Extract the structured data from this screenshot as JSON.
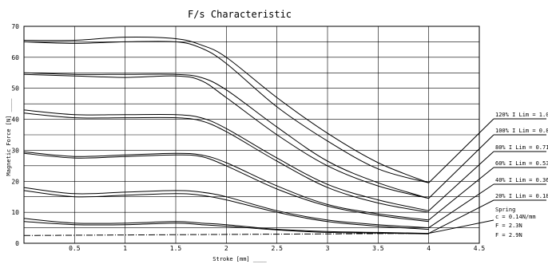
{
  "chart_data": {
    "type": "line",
    "title": "F/s Characteristic",
    "xlabel": "Stroke [mm] ____",
    "ylabel": "Magnetic Force [N] ____",
    "xlim": [
      0,
      4.5
    ],
    "ylim": [
      0,
      70
    ],
    "xticks": [
      "0.5",
      "1",
      "1.5",
      "2",
      "2.5",
      "3",
      "3.5",
      "4",
      "4.5"
    ],
    "yticks": [
      "0",
      "10",
      "20",
      "30",
      "40",
      "50",
      "60",
      "70"
    ],
    "grid": true,
    "series": [
      {
        "name": "120% I Lim = 1.07A",
        "upper": [
          [
            0,
            65.5
          ],
          [
            0.5,
            65.5
          ],
          [
            1,
            66.5
          ],
          [
            1.5,
            66
          ],
          [
            1.75,
            64
          ],
          [
            2,
            60
          ],
          [
            2.5,
            47
          ],
          [
            3,
            35.5
          ],
          [
            3.5,
            26
          ],
          [
            4,
            19.5
          ]
        ],
        "lower": [
          [
            0,
            65
          ],
          [
            0.5,
            64.5
          ],
          [
            1,
            65
          ],
          [
            1.5,
            65
          ],
          [
            1.75,
            63
          ],
          [
            2,
            58
          ],
          [
            2.5,
            44
          ],
          [
            3,
            33
          ],
          [
            3.5,
            24
          ],
          [
            4,
            19.5
          ]
        ]
      },
      {
        "name": "100% I Lim = 0.89A",
        "upper": [
          [
            0,
            55
          ],
          [
            0.5,
            54.5
          ],
          [
            1,
            54.5
          ],
          [
            1.5,
            54.5
          ],
          [
            1.75,
            53.5
          ],
          [
            2,
            49.5
          ],
          [
            2.5,
            37.5
          ],
          [
            3,
            26.5
          ],
          [
            3.5,
            19.5
          ],
          [
            4,
            14.5
          ]
        ],
        "lower": [
          [
            0,
            54.5
          ],
          [
            0.5,
            54
          ],
          [
            1,
            53.5
          ],
          [
            1.5,
            54
          ],
          [
            1.75,
            52.5
          ],
          [
            2,
            47
          ],
          [
            2.5,
            35
          ],
          [
            3,
            25
          ],
          [
            3.5,
            18.5
          ],
          [
            4,
            14.5
          ]
        ]
      },
      {
        "name": "80% I Lim = 0.71A",
        "upper": [
          [
            0,
            43
          ],
          [
            0.5,
            41.5
          ],
          [
            1,
            41.5
          ],
          [
            1.5,
            41.5
          ],
          [
            1.75,
            40.5
          ],
          [
            2,
            37
          ],
          [
            2.5,
            27.5
          ],
          [
            3,
            19
          ],
          [
            3.5,
            14
          ],
          [
            4,
            10.5
          ]
        ],
        "lower": [
          [
            0,
            42
          ],
          [
            0.5,
            40.5
          ],
          [
            1,
            40.5
          ],
          [
            1.5,
            40.5
          ],
          [
            1.75,
            39.5
          ],
          [
            2,
            36
          ],
          [
            2.5,
            26.5
          ],
          [
            3,
            18
          ],
          [
            3.5,
            13
          ],
          [
            4,
            10
          ]
        ]
      },
      {
        "name": "60% I Lim = 0.53A",
        "upper": [
          [
            0,
            29.5
          ],
          [
            0.5,
            28
          ],
          [
            1,
            28.5
          ],
          [
            1.5,
            29
          ],
          [
            1.75,
            28.5
          ],
          [
            2,
            26
          ],
          [
            2.5,
            18.5
          ],
          [
            3,
            12.5
          ],
          [
            3.5,
            9.5
          ],
          [
            4,
            7.5
          ]
        ],
        "lower": [
          [
            0,
            29
          ],
          [
            0.5,
            27.5
          ],
          [
            1,
            28
          ],
          [
            1.5,
            28.5
          ],
          [
            1.75,
            28
          ],
          [
            2,
            25
          ],
          [
            2.5,
            17.5
          ],
          [
            3,
            12
          ],
          [
            3.5,
            9
          ],
          [
            4,
            7
          ]
        ]
      },
      {
        "name": "40% I Lim = 0.36A",
        "upper": [
          [
            0,
            18
          ],
          [
            0.5,
            16
          ],
          [
            1,
            16.5
          ],
          [
            1.5,
            17
          ],
          [
            1.75,
            16.5
          ],
          [
            2,
            15
          ],
          [
            2.5,
            10.5
          ],
          [
            3,
            7.5
          ],
          [
            3.5,
            6
          ],
          [
            4,
            5
          ]
        ],
        "lower": [
          [
            0,
            17
          ],
          [
            0.5,
            15
          ],
          [
            1,
            15.5
          ],
          [
            1.5,
            16
          ],
          [
            1.75,
            15.5
          ],
          [
            2,
            14
          ],
          [
            2.5,
            10
          ],
          [
            3,
            7
          ],
          [
            3.5,
            5.5
          ],
          [
            4,
            4.5
          ]
        ]
      },
      {
        "name": "20% I Lim = 0.18A",
        "upper": [
          [
            0,
            8
          ],
          [
            0.5,
            6.5
          ],
          [
            1,
            6.5
          ],
          [
            1.5,
            7
          ],
          [
            1.75,
            6.5
          ],
          [
            2,
            6
          ],
          [
            2.5,
            4.5
          ],
          [
            3,
            3.8
          ],
          [
            3.5,
            3.5
          ],
          [
            4,
            3.2
          ]
        ],
        "lower": [
          [
            0,
            7
          ],
          [
            0.5,
            6
          ],
          [
            1,
            6
          ],
          [
            1.5,
            6.5
          ],
          [
            1.75,
            6
          ],
          [
            2,
            5.5
          ],
          [
            2.5,
            4.3
          ],
          [
            3,
            3.5
          ],
          [
            3.5,
            3.3
          ],
          [
            4,
            3
          ]
        ]
      },
      {
        "name": "Spring c = 0.14N/mm",
        "style": "dashdot",
        "points": [
          [
            0,
            2.5
          ],
          [
            4,
            3.2
          ]
        ]
      }
    ],
    "spring_labels": [
      "Spring",
      "c = 0.14N/mm",
      "F = 2.3N",
      "F = 2.9N"
    ]
  }
}
